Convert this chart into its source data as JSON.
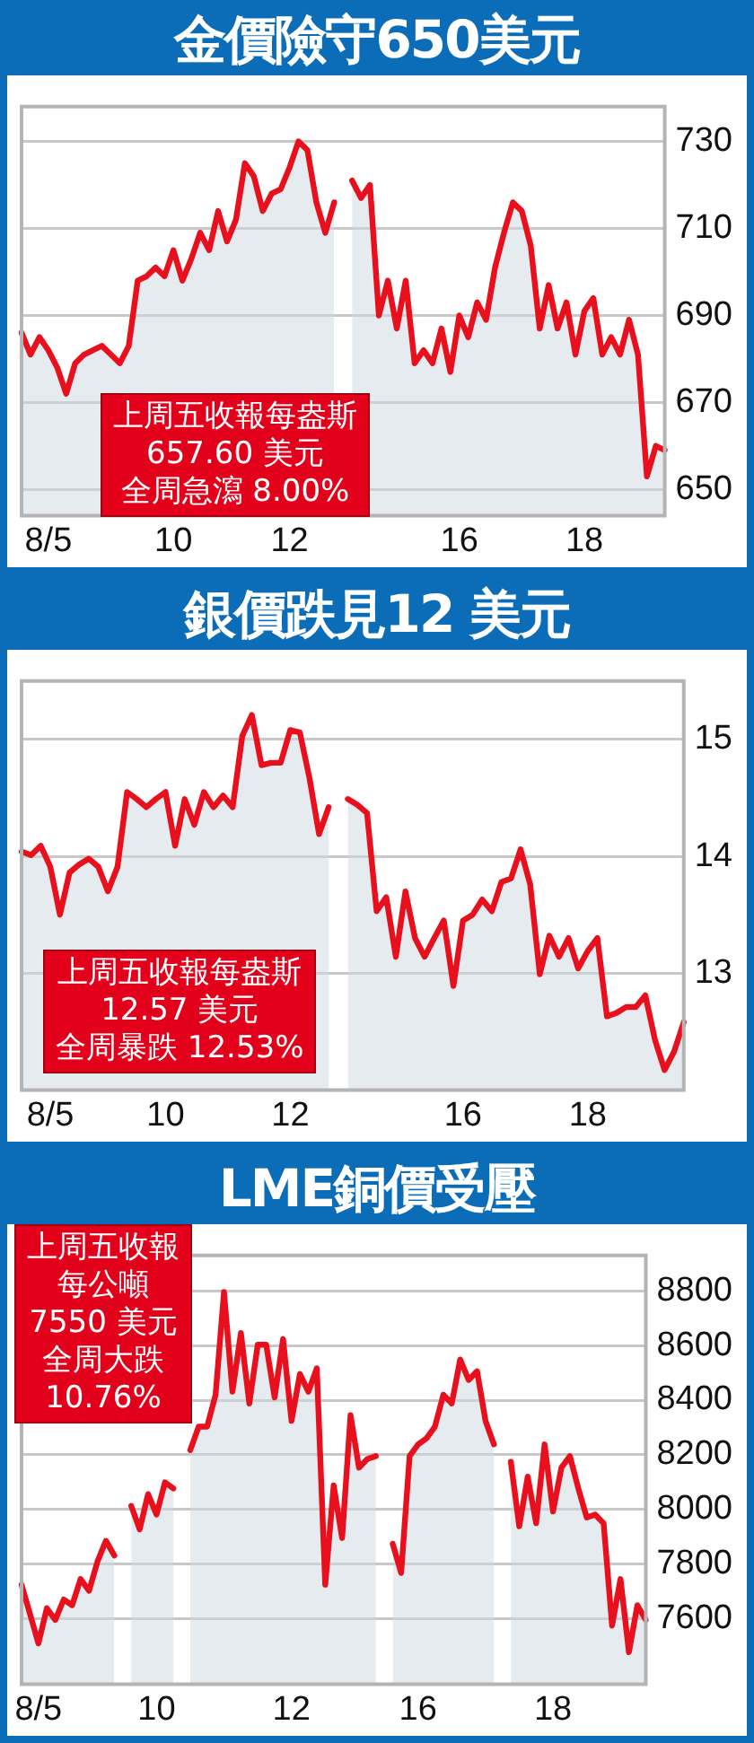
{
  "chart_data": [
    {
      "type": "area",
      "title": "金價險守650美元",
      "annotations": [
        "上周五收報每盎斯",
        "657.60 美元",
        "全周急瀉 8.00%"
      ],
      "categories": [
        null,
        null,
        null,
        "8/5",
        null,
        null,
        null,
        null,
        null,
        null,
        null,
        null,
        null,
        null,
        null,
        null,
        null,
        "10",
        null,
        null,
        null,
        null,
        null,
        null,
        null,
        null,
        null,
        null,
        null,
        null,
        "12",
        null,
        null,
        null,
        null,
        null,
        null,
        null,
        null,
        null,
        null,
        null,
        null,
        null,
        null,
        null,
        null,
        null,
        null,
        "16",
        null,
        null,
        null,
        null,
        null,
        null,
        null,
        null,
        null,
        null,
        null,
        null,
        null,
        "18",
        null,
        null,
        null,
        null,
        null,
        null,
        null,
        null,
        null
      ],
      "ylim": [
        644,
        738
      ],
      "yticks": [
        650,
        670,
        690,
        710,
        730
      ],
      "grid": "y",
      "legend": false,
      "series": [
        {
          "color": "#e8101c",
          "values": [
            686,
            681,
            685,
            682,
            678,
            672,
            679,
            681,
            682,
            683,
            681,
            679,
            683,
            698,
            699,
            701,
            699,
            705,
            698,
            703,
            709,
            705,
            714,
            707,
            712,
            725,
            722,
            714,
            718,
            719,
            724,
            730,
            728,
            716,
            709,
            716,
            null,
            721,
            717,
            720,
            690,
            698,
            687,
            698,
            679,
            682,
            679,
            687,
            677,
            690,
            685,
            693,
            689,
            701,
            709,
            716,
            714,
            706,
            687,
            697,
            687,
            693,
            681,
            691,
            694,
            681,
            685,
            681,
            689,
            681,
            653,
            660,
            659
          ]
        }
      ]
    },
    {
      "type": "area",
      "title": "銀價跌見12 美元",
      "annotations": [
        "上周五收報每盎斯",
        "12.57 美元",
        "全周暴跌 12.53%"
      ],
      "categories": [
        null,
        null,
        null,
        "8/5",
        null,
        null,
        null,
        null,
        null,
        null,
        null,
        null,
        null,
        null,
        null,
        "10",
        null,
        null,
        null,
        null,
        null,
        null,
        null,
        null,
        null,
        null,
        null,
        null,
        "12",
        null,
        null,
        null,
        null,
        null,
        null,
        null,
        null,
        null,
        null,
        null,
        null,
        null,
        null,
        null,
        null,
        null,
        "16",
        null,
        null,
        null,
        null,
        null,
        null,
        null,
        null,
        null,
        null,
        null,
        null,
        "18",
        null,
        null,
        null,
        null,
        null,
        null,
        null,
        null,
        null,
        null
      ],
      "ylim": [
        12,
        15.5
      ],
      "yticks": [
        13,
        14,
        15
      ],
      "grid": "y",
      "legend": false,
      "series": [
        {
          "color": "#e8101c",
          "values": [
            14.04,
            14.01,
            14.09,
            13.91,
            13.5,
            13.86,
            13.93,
            13.98,
            13.91,
            13.7,
            13.91,
            14.55,
            14.49,
            14.42,
            14.49,
            14.55,
            14.09,
            14.49,
            14.27,
            14.55,
            14.42,
            14.52,
            14.42,
            15.03,
            15.21,
            14.78,
            14.8,
            14.8,
            15.08,
            15.06,
            14.67,
            14.19,
            14.42,
            null,
            14.49,
            14.44,
            14.37,
            13.53,
            13.65,
            13.14,
            13.7,
            13.3,
            13.14,
            13.3,
            13.45,
            12.89,
            13.45,
            13.5,
            13.63,
            13.53,
            13.78,
            13.81,
            14.06,
            13.76,
            12.99,
            13.32,
            13.14,
            13.3,
            13.04,
            13.19,
            13.3,
            12.63,
            12.66,
            12.71,
            12.71,
            12.81,
            12.43,
            12.17,
            12.33,
            12.58
          ]
        }
      ]
    },
    {
      "type": "area",
      "title": "LME銅價受壓",
      "annotations": [
        "上周五收報",
        "每公噸",
        "7550 美元",
        "全周大跌",
        "10.76%"
      ],
      "categories": [
        null,
        null,
        "8/5",
        null,
        null,
        null,
        null,
        null,
        null,
        null,
        null,
        null,
        null,
        null,
        null,
        null,
        "10",
        null,
        null,
        null,
        null,
        null,
        null,
        null,
        null,
        null,
        null,
        null,
        null,
        null,
        null,
        null,
        "12",
        null,
        null,
        null,
        null,
        null,
        null,
        null,
        null,
        null,
        null,
        null,
        null,
        null,
        null,
        "16",
        null,
        null,
        null,
        null,
        null,
        null,
        null,
        null,
        null,
        null,
        null,
        null,
        null,
        null,
        null,
        "18",
        null,
        null,
        null,
        null,
        null,
        null,
        null,
        null,
        null,
        null,
        null
      ],
      "ylim": [
        7360,
        8930
      ],
      "yticks": [
        7600,
        7800,
        8000,
        8200,
        8400,
        8600,
        8800
      ],
      "grid": "y",
      "legend": false,
      "series": [
        {
          "color": "#e8101c",
          "values": [
            7724,
            7617,
            7509,
            7638,
            7595,
            7670,
            7649,
            7745,
            7702,
            7809,
            7885,
            7831,
            null,
            8013,
            7927,
            8056,
            7981,
            8099,
            8077,
            null,
            8217,
            8303,
            8303,
            8420,
            8796,
            8431,
            8646,
            8388,
            8603,
            8603,
            8410,
            8624,
            8324,
            8496,
            8431,
            8517,
            7724,
            8088,
            7895,
            8345,
            8153,
            8185,
            8195,
            null,
            7874,
            7767,
            8195,
            8238,
            8260,
            8303,
            8420,
            8388,
            8549,
            8474,
            8506,
            8324,
            8238,
            null,
            8174,
            7938,
            8120,
            7949,
            8238,
            7992,
            8153,
            8195,
            8077,
            7970,
            7981,
            7949,
            7574,
            7745,
            7477,
            7649,
            7595
          ]
        }
      ]
    }
  ]
}
